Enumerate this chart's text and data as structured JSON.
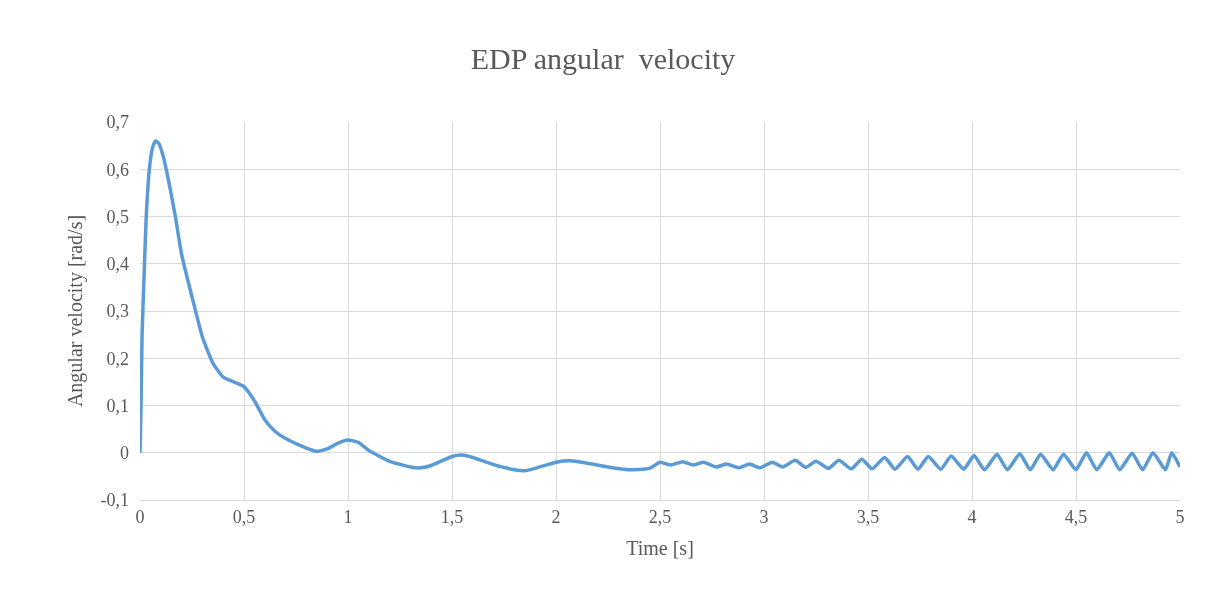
{
  "chart_data": {
    "type": "line",
    "title": "EDP angular  velocity",
    "xlabel": "Time [s]",
    "ylabel": "Angular velocity [rad/s]",
    "xlim": [
      0,
      5
    ],
    "ylim": [
      -0.1,
      0.7
    ],
    "xticks": [
      0,
      {
        "value": 0.5,
        "label": "0,5"
      },
      1,
      {
        "value": 1.5,
        "label": "1,5"
      },
      2,
      {
        "value": 2.5,
        "label": "2,5"
      },
      3,
      {
        "value": 3.5,
        "label": "3,5"
      },
      4,
      {
        "value": 4.5,
        "label": "4,5"
      },
      5
    ],
    "yticks": [
      {
        "value": -0.1,
        "label": "-0,1"
      },
      0,
      {
        "value": 0.1,
        "label": "0,1"
      },
      {
        "value": 0.2,
        "label": "0,2"
      },
      {
        "value": 0.3,
        "label": "0,3"
      },
      {
        "value": 0.4,
        "label": "0,4"
      },
      {
        "value": 0.5,
        "label": "0,5"
      },
      {
        "value": 0.6,
        "label": "0,6"
      },
      {
        "value": 0.7,
        "label": "0,7"
      }
    ],
    "grid": true,
    "marker": "none",
    "line_style": "solid",
    "series": [
      {
        "color": "#5b9bd5",
        "x": [
          0,
          0.005,
          0.01,
          0.02,
          0.03,
          0.045,
          0.06,
          0.075,
          0.09,
          0.11,
          0.14,
          0.17,
          0.2,
          0.25,
          0.3,
          0.35,
          0.4,
          0.45,
          0.5,
          0.55,
          0.6,
          0.65,
          0.7,
          0.8,
          0.85,
          0.9,
          0.95,
          1.0,
          1.05,
          1.1,
          1.2,
          1.3,
          1.35,
          1.4,
          1.5,
          1.55,
          1.6,
          1.7,
          1.8,
          1.85,
          1.9,
          2.0,
          2.07,
          2.15,
          2.25,
          2.35,
          2.45,
          2.5,
          2.55,
          2.61,
          2.66,
          2.71,
          2.77,
          2.82,
          2.88,
          2.93,
          2.98,
          3.04,
          3.09,
          3.15,
          3.2,
          3.25,
          3.31,
          3.36,
          3.42,
          3.47,
          3.52,
          3.58,
          3.63,
          3.69,
          3.74,
          3.79,
          3.85,
          3.9,
          3.96,
          4.01,
          4.06,
          4.12,
          4.17,
          4.23,
          4.28,
          4.33,
          4.39,
          4.44,
          4.5,
          4.55,
          4.6,
          4.66,
          4.71,
          4.77,
          4.82,
          4.87,
          4.93,
          4.96,
          5.0
        ],
        "values": [
          0,
          0.1,
          0.25,
          0.38,
          0.5,
          0.6,
          0.645,
          0.66,
          0.655,
          0.63,
          0.57,
          0.5,
          0.42,
          0.33,
          0.245,
          0.19,
          0.16,
          0.15,
          0.14,
          0.11,
          0.07,
          0.045,
          0.03,
          0.01,
          0.003,
          0.008,
          0.02,
          0.027,
          0.022,
          0.005,
          -0.018,
          -0.03,
          -0.032,
          -0.027,
          -0.008,
          -0.005,
          -0.01,
          -0.025,
          -0.036,
          -0.038,
          -0.033,
          -0.02,
          -0.017,
          -0.022,
          -0.03,
          -0.036,
          -0.033,
          -0.02,
          -0.026,
          -0.019,
          -0.026,
          -0.02,
          -0.03,
          -0.024,
          -0.032,
          -0.024,
          -0.032,
          -0.02,
          -0.03,
          -0.016,
          -0.031,
          -0.018,
          -0.033,
          -0.016,
          -0.034,
          -0.014,
          -0.034,
          -0.01,
          -0.035,
          -0.008,
          -0.035,
          -0.008,
          -0.035,
          -0.007,
          -0.035,
          -0.006,
          -0.036,
          -0.003,
          -0.036,
          -0.002,
          -0.036,
          -0.003,
          -0.036,
          -0.003,
          -0.036,
          0.0,
          -0.036,
          0.0,
          -0.036,
          -0.001,
          -0.036,
          0.0,
          -0.036,
          0.0,
          -0.03
        ]
      }
    ]
  }
}
